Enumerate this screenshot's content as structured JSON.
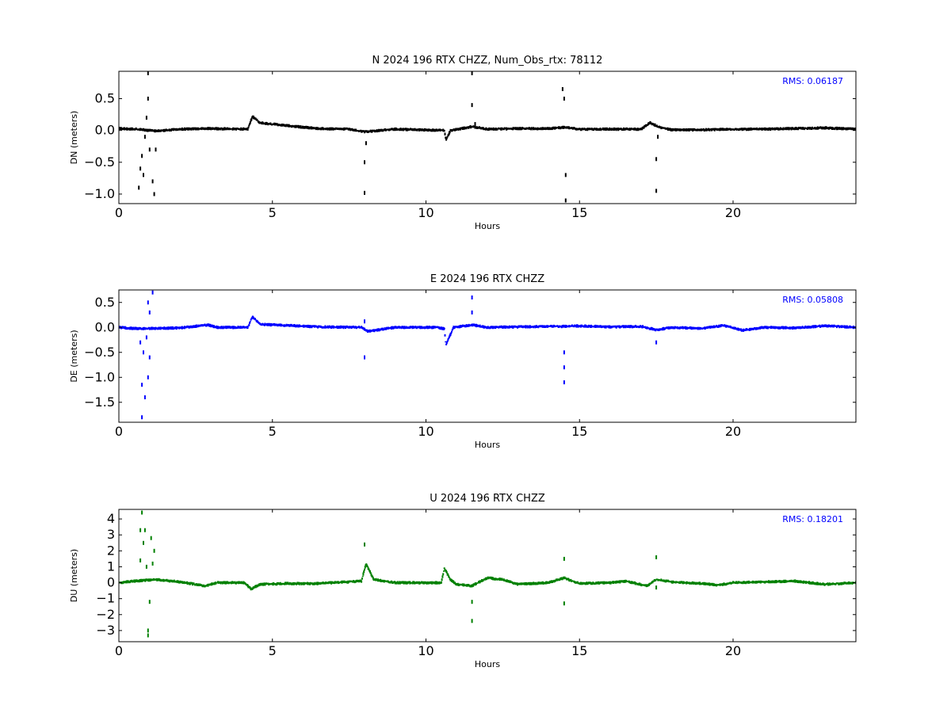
{
  "chart_data": [
    {
      "type": "scatter",
      "title": "N 2024 196 RTX  CHZZ, Num_Obs_rtx: 78112",
      "xlabel": "Hours",
      "ylabel": "DN (meters)",
      "xlim": [
        0,
        24
      ],
      "ylim": [
        -1.15,
        0.93
      ],
      "xticks": [
        0,
        5,
        10,
        15,
        20
      ],
      "yticks": [
        -1.0,
        -0.5,
        0.0,
        0.5
      ],
      "x_tick_labels": [
        "0",
        "5",
        "10",
        "15",
        "20"
      ],
      "y_tick_labels": [
        "−1.0",
        "−0.5",
        "0.0",
        "0.5"
      ],
      "rms_text": "RMS:  0.06187",
      "color": "#000000",
      "rms_color": "#0000ff",
      "baseline": [
        [
          0,
          0.03
        ],
        [
          0.6,
          0.02
        ],
        [
          1.2,
          -0.01
        ],
        [
          2,
          0.02
        ],
        [
          3,
          0.03
        ],
        [
          4.2,
          0.02
        ],
        [
          4.35,
          0.22
        ],
        [
          4.6,
          0.12
        ],
        [
          5,
          0.1
        ],
        [
          5.8,
          0.06
        ],
        [
          6.5,
          0.03
        ],
        [
          7.5,
          0.02
        ],
        [
          8,
          -0.02
        ],
        [
          9,
          0.02
        ],
        [
          10.6,
          0.0
        ],
        [
          10.65,
          -0.15
        ],
        [
          10.8,
          0.0
        ],
        [
          11.5,
          0.06
        ],
        [
          12,
          0.02
        ],
        [
          13,
          0.03
        ],
        [
          14,
          0.03
        ],
        [
          14.5,
          0.05
        ],
        [
          15,
          0.02
        ],
        [
          16,
          0.02
        ],
        [
          17,
          0.02
        ],
        [
          17.3,
          0.12
        ],
        [
          17.6,
          0.05
        ],
        [
          18,
          0.01
        ],
        [
          19,
          0.01
        ],
        [
          20,
          0.02
        ],
        [
          21,
          0.02
        ],
        [
          22,
          0.03
        ],
        [
          23,
          0.04
        ],
        [
          24,
          0.02
        ]
      ],
      "spikes": [
        [
          0.65,
          -0.9
        ],
        [
          0.7,
          -0.6
        ],
        [
          0.75,
          -0.4
        ],
        [
          0.8,
          -0.7
        ],
        [
          0.85,
          -0.1
        ],
        [
          0.9,
          0.2
        ],
        [
          0.95,
          0.5
        ],
        [
          0.95,
          0.9
        ],
        [
          1.0,
          -0.3
        ],
        [
          1.1,
          -0.8
        ],
        [
          1.15,
          -1.0
        ],
        [
          1.2,
          -0.3
        ],
        [
          8.0,
          -0.5
        ],
        [
          8.0,
          -0.98
        ],
        [
          8.05,
          -0.2
        ],
        [
          11.5,
          0.4
        ],
        [
          11.5,
          0.9
        ],
        [
          11.6,
          0.1
        ],
        [
          14.45,
          0.65
        ],
        [
          14.5,
          0.5
        ],
        [
          14.55,
          -0.7
        ],
        [
          14.55,
          -1.1
        ],
        [
          17.5,
          -0.45
        ],
        [
          17.5,
          -0.95
        ],
        [
          17.55,
          -0.1
        ]
      ]
    },
    {
      "type": "scatter",
      "title": "E 2024 196 RTX  CHZZ",
      "xlabel": "Hours",
      "ylabel": "DE (meters)",
      "xlim": [
        0,
        24
      ],
      "ylim": [
        -1.9,
        0.75
      ],
      "xticks": [
        0,
        5,
        10,
        15,
        20
      ],
      "yticks": [
        -1.5,
        -1.0,
        -0.5,
        0.0,
        0.5
      ],
      "x_tick_labels": [
        "0",
        "5",
        "10",
        "15",
        "20"
      ],
      "y_tick_labels": [
        "−1.5",
        "−1.0",
        "−0.5",
        "0.0",
        "0.5"
      ],
      "rms_text": "RMS:  0.05808",
      "color": "#0000ff",
      "rms_color": "#0000ff",
      "baseline": [
        [
          0,
          0.0
        ],
        [
          0.5,
          -0.02
        ],
        [
          1.2,
          -0.02
        ],
        [
          2,
          -0.01
        ],
        [
          2.9,
          0.05
        ],
        [
          3.2,
          0.0
        ],
        [
          4.2,
          0.0
        ],
        [
          4.35,
          0.22
        ],
        [
          4.6,
          0.06
        ],
        [
          5.5,
          0.04
        ],
        [
          6.5,
          0.01
        ],
        [
          7.9,
          0.0
        ],
        [
          8.1,
          -0.08
        ],
        [
          9,
          0.0
        ],
        [
          10.4,
          0.0
        ],
        [
          10.6,
          -0.03
        ],
        [
          10.65,
          -0.35
        ],
        [
          10.9,
          0.0
        ],
        [
          11.5,
          0.05
        ],
        [
          12,
          0.0
        ],
        [
          13,
          0.01
        ],
        [
          14,
          0.02
        ],
        [
          14.5,
          0.02
        ],
        [
          15,
          0.03
        ],
        [
          16,
          0.01
        ],
        [
          17,
          0.02
        ],
        [
          17.5,
          -0.05
        ],
        [
          18,
          0.0
        ],
        [
          19,
          -0.02
        ],
        [
          19.7,
          0.04
        ],
        [
          20.3,
          -0.06
        ],
        [
          21,
          0.0
        ],
        [
          22,
          -0.01
        ],
        [
          23,
          0.03
        ],
        [
          24,
          0.0
        ]
      ],
      "spikes": [
        [
          0.7,
          -0.3
        ],
        [
          0.75,
          -1.15
        ],
        [
          0.75,
          -1.8
        ],
        [
          0.8,
          -0.5
        ],
        [
          0.85,
          -1.4
        ],
        [
          0.9,
          -0.2
        ],
        [
          0.95,
          0.5
        ],
        [
          0.95,
          -1.0
        ],
        [
          1.0,
          -0.6
        ],
        [
          1.0,
          0.3
        ],
        [
          1.1,
          0.7
        ],
        [
          8.0,
          -0.6
        ],
        [
          8.0,
          0.12
        ],
        [
          11.5,
          0.6
        ],
        [
          11.5,
          0.3
        ],
        [
          14.5,
          -0.5
        ],
        [
          14.5,
          -1.1
        ],
        [
          14.5,
          -0.8
        ],
        [
          17.5,
          -0.3
        ]
      ]
    },
    {
      "type": "scatter",
      "title": "U 2024 196 RTX  CHZZ",
      "xlabel": "Hours",
      "ylabel": "DU (meters)",
      "xlim": [
        0,
        24
      ],
      "ylim": [
        -3.7,
        4.6
      ],
      "xticks": [
        0,
        5,
        10,
        15,
        20
      ],
      "yticks": [
        -3,
        -2,
        -1,
        0,
        1,
        2,
        3,
        4
      ],
      "x_tick_labels": [
        "0",
        "5",
        "10",
        "15",
        "20"
      ],
      "y_tick_labels": [
        "−3",
        "−2",
        "−1",
        "0",
        "1",
        "2",
        "3",
        "4"
      ],
      "rms_text": "RMS:  0.18201",
      "color": "#008000",
      "rms_color": "#0000ff",
      "baseline": [
        [
          0,
          0.0
        ],
        [
          0.5,
          0.1
        ],
        [
          1.2,
          0.2
        ],
        [
          2,
          0.05
        ],
        [
          2.8,
          -0.2
        ],
        [
          3.2,
          0.0
        ],
        [
          4.1,
          0.0
        ],
        [
          4.3,
          -0.4
        ],
        [
          4.6,
          -0.1
        ],
        [
          5.5,
          -0.05
        ],
        [
          6.5,
          -0.05
        ],
        [
          7.9,
          0.1
        ],
        [
          8.05,
          1.2
        ],
        [
          8.3,
          0.2
        ],
        [
          9,
          0.0
        ],
        [
          10.5,
          0.0
        ],
        [
          10.6,
          0.9
        ],
        [
          10.8,
          0.2
        ],
        [
          11,
          -0.1
        ],
        [
          11.5,
          -0.2
        ],
        [
          12,
          0.3
        ],
        [
          12.5,
          0.2
        ],
        [
          13,
          -0.1
        ],
        [
          14,
          0.0
        ],
        [
          14.5,
          0.3
        ],
        [
          15,
          -0.05
        ],
        [
          16,
          0.0
        ],
        [
          16.5,
          0.1
        ],
        [
          17.2,
          -0.2
        ],
        [
          17.5,
          0.2
        ],
        [
          18,
          0.05
        ],
        [
          19,
          -0.05
        ],
        [
          19.5,
          -0.15
        ],
        [
          20,
          0.0
        ],
        [
          21,
          0.05
        ],
        [
          22,
          0.1
        ],
        [
          23,
          -0.1
        ],
        [
          24,
          0.0
        ]
      ],
      "spikes": [
        [
          0.7,
          3.3
        ],
        [
          0.7,
          1.4
        ],
        [
          0.75,
          4.4
        ],
        [
          0.8,
          2.5
        ],
        [
          0.85,
          3.3
        ],
        [
          0.9,
          1.0
        ],
        [
          0.95,
          -3.0
        ],
        [
          0.95,
          -3.3
        ],
        [
          1.0,
          -1.2
        ],
        [
          1.05,
          2.8
        ],
        [
          1.1,
          1.2
        ],
        [
          1.15,
          2.0
        ],
        [
          8.0,
          2.4
        ],
        [
          11.5,
          -1.2
        ],
        [
          11.5,
          -2.4
        ],
        [
          14.5,
          1.5
        ],
        [
          14.5,
          -1.3
        ],
        [
          17.5,
          1.6
        ],
        [
          17.5,
          -0.3
        ]
      ]
    }
  ]
}
